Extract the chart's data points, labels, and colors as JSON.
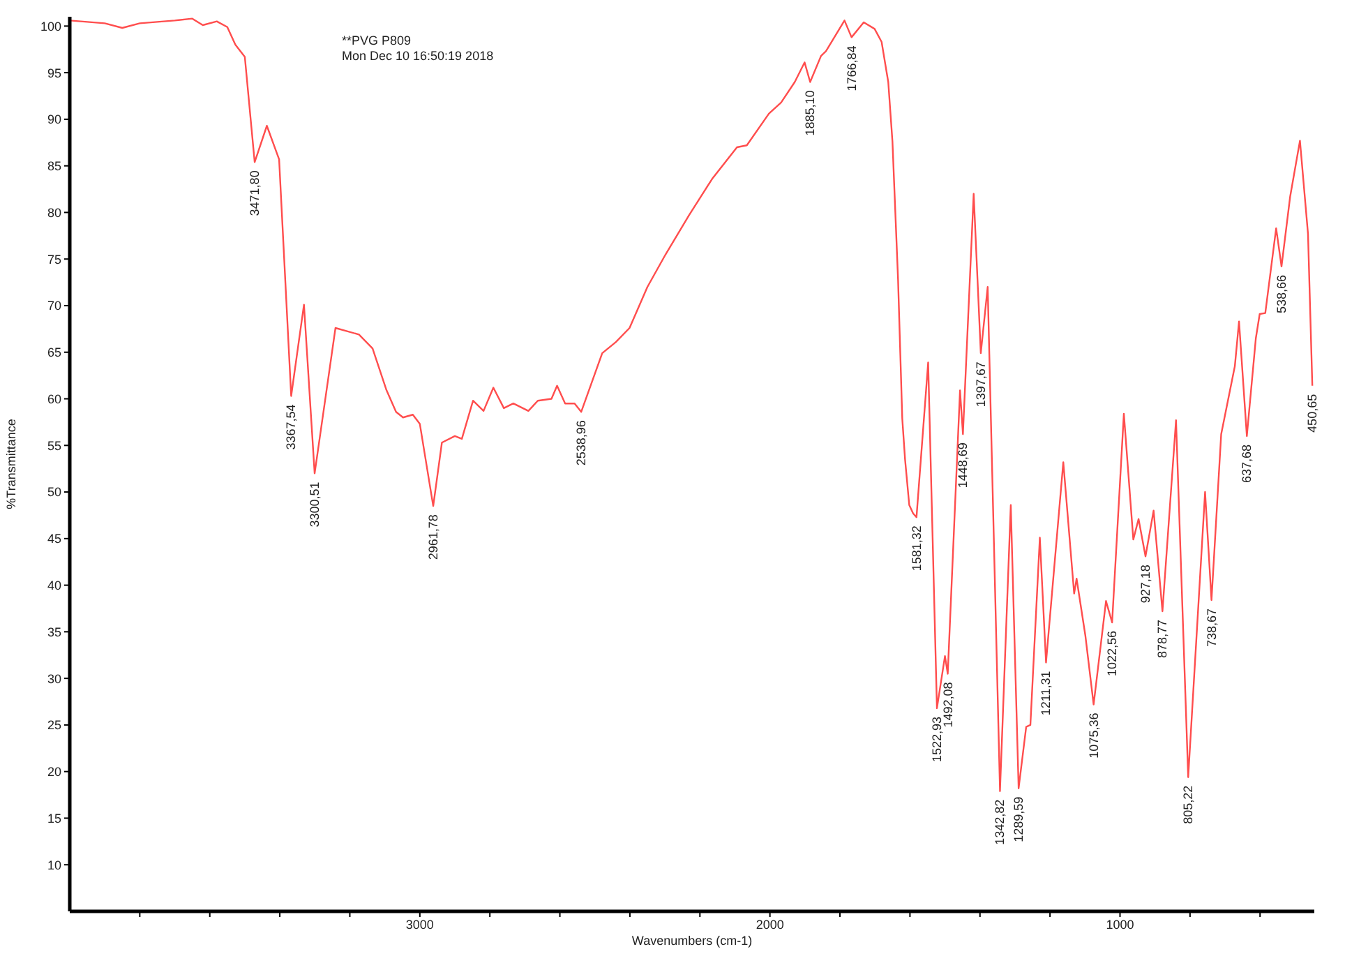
{
  "chart_data": {
    "type": "line",
    "xlabel": "Wavenumbers (cm-1)",
    "ylabel": "%Transmittance",
    "xlim": [
      4000,
      445
    ],
    "ylim": [
      5,
      101
    ],
    "xticks": [
      {
        "value": 3800,
        "label": null
      },
      {
        "value": 3600,
        "label": null
      },
      {
        "value": 3400,
        "label": null
      },
      {
        "value": 3200,
        "label": null
      },
      3000,
      {
        "value": 2800,
        "label": null
      },
      {
        "value": 2600,
        "label": null
      },
      {
        "value": 2400,
        "label": null
      },
      {
        "value": 2200,
        "label": null
      },
      2000,
      {
        "value": 1800,
        "label": null
      },
      {
        "value": 1600,
        "label": null
      },
      {
        "value": 1400,
        "label": null
      },
      {
        "value": 1200,
        "label": null
      },
      1000,
      {
        "value": 800,
        "label": null
      },
      {
        "value": 600,
        "label": null
      }
    ],
    "yticks": [
      10,
      15,
      20,
      25,
      30,
      35,
      40,
      45,
      50,
      55,
      60,
      65,
      70,
      75,
      80,
      85,
      90,
      95,
      100
    ],
    "grid": false,
    "marker": "none",
    "line_style": "solid",
    "series": [
      {
        "color": "#ff4d4d",
        "x": [
          4000,
          3900,
          3850,
          3800,
          3700,
          3650,
          3620,
          3580,
          3550,
          3527,
          3500,
          3471.8,
          3437,
          3402,
          3367.54,
          3331,
          3300.51,
          3241,
          3174,
          3135,
          3096,
          3068,
          3048,
          3020,
          3000,
          2961.78,
          2937,
          2900,
          2880,
          2848,
          2818,
          2790,
          2760,
          2733,
          2690,
          2663,
          2624,
          2608,
          2585,
          2558,
          2538.96,
          2479,
          2440,
          2401,
          2350,
          2298,
          2231,
          2165,
          2094,
          2066,
          2003,
          1968,
          1929,
          1901,
          1885.1,
          1854,
          1840,
          1787,
          1766.84,
          1732,
          1701,
          1681,
          1662,
          1650,
          1634,
          1622,
          1614,
          1602,
          1591,
          1581.32,
          1548,
          1522.93,
          1500,
          1492.08,
          1457,
          1448.69,
          1418,
          1397.67,
          1378,
          1342.82,
          1312,
          1289.59,
          1268,
          1256,
          1229,
          1211.31,
          1162,
          1131,
          1124,
          1099,
          1075.36,
          1040,
          1022.56,
          989,
          962,
          947,
          927.18,
          904,
          878.77,
          840,
          805.22,
          757,
          738.67,
          711,
          672,
          660,
          637.68,
          612,
          601,
          585,
          554,
          538.66,
          514,
          486,
          463,
          450.65
        ],
        "values": [
          100.6,
          100.3,
          99.8,
          100.3,
          100.6,
          100.8,
          100.1,
          100.5,
          99.9,
          98,
          96.7,
          85.4,
          89.3,
          85.7,
          60.3,
          70.1,
          52,
          67.6,
          66.9,
          65.4,
          61,
          58.6,
          58,
          58.3,
          57.3,
          48.5,
          55.3,
          56,
          55.7,
          59.8,
          58.7,
          61.2,
          59,
          59.5,
          58.7,
          59.8,
          60,
          61.4,
          59.5,
          59.5,
          58.6,
          64.9,
          66.1,
          67.6,
          72,
          75.5,
          79.7,
          83.6,
          87,
          87.2,
          90.6,
          91.8,
          94,
          96.1,
          94,
          96.8,
          97.3,
          100.6,
          98.8,
          100.4,
          99.7,
          98.3,
          94,
          87.6,
          72.8,
          57.9,
          53.5,
          48.6,
          47.7,
          47.3,
          63.9,
          26.8,
          32.4,
          30.5,
          60.9,
          56.2,
          82,
          64.9,
          72,
          17.9,
          48.6,
          18.2,
          24.8,
          25,
          45.1,
          31.7,
          53.2,
          39.1,
          40.7,
          34.6,
          27.2,
          38.3,
          36,
          58.4,
          44.9,
          47.1,
          43.1,
          48,
          37.2,
          57.7,
          19.4,
          50,
          38.4,
          56.2,
          63.5,
          68.3,
          56,
          66.5,
          69.1,
          69.2,
          78.3,
          74.2,
          81.7,
          87.7,
          77.7,
          61.4
        ]
      }
    ],
    "annotations": [
      "**PVG P809",
      "Mon Dec 10 16:50:19 2018",
      {
        "text": "3471,80",
        "x": 3471.8,
        "y": 85.4
      },
      {
        "text": "3367,54",
        "x": 3367.54,
        "y": 60.3
      },
      {
        "text": "3300,51",
        "x": 3300.51,
        "y": 52
      },
      {
        "text": "2961,78",
        "x": 2961.78,
        "y": 48.5
      },
      {
        "text": "2538,96",
        "x": 2538.96,
        "y": 58.6
      },
      {
        "text": "1885,10",
        "x": 1885.1,
        "y": 94
      },
      {
        "text": "1766,84",
        "x": 1766.84,
        "y": 98.8
      },
      {
        "text": "1581,32",
        "x": 1581.32,
        "y": 47.3
      },
      {
        "text": "1522,93",
        "x": 1522.93,
        "y": 26.8
      },
      {
        "text": "1492,08",
        "x": 1492.08,
        "y": 30.5
      },
      {
        "text": "1448,69",
        "x": 1448.69,
        "y": 56.2
      },
      {
        "text": "1397,67",
        "x": 1397.67,
        "y": 64.9
      },
      {
        "text": "1342,82",
        "x": 1342.82,
        "y": 17.9
      },
      {
        "text": "1289,59",
        "x": 1289.59,
        "y": 18.2
      },
      {
        "text": "1211,31",
        "x": 1211.31,
        "y": 31.7
      },
      {
        "text": "1075,36",
        "x": 1075.36,
        "y": 27.2
      },
      {
        "text": "1022,56",
        "x": 1022.56,
        "y": 36
      },
      {
        "text": "927,18",
        "x": 927.18,
        "y": 43.1
      },
      {
        "text": "878,77",
        "x": 878.77,
        "y": 37.2
      },
      {
        "text": "805,22",
        "x": 805.22,
        "y": 19.4
      },
      {
        "text": "738,67",
        "x": 738.67,
        "y": 38.4
      },
      {
        "text": "637,68",
        "x": 637.68,
        "y": 56
      },
      {
        "text": "538,66",
        "x": 538.66,
        "y": 74.2
      },
      {
        "text": "450,65",
        "x": 450.65,
        "y": 61.4
      }
    ]
  }
}
